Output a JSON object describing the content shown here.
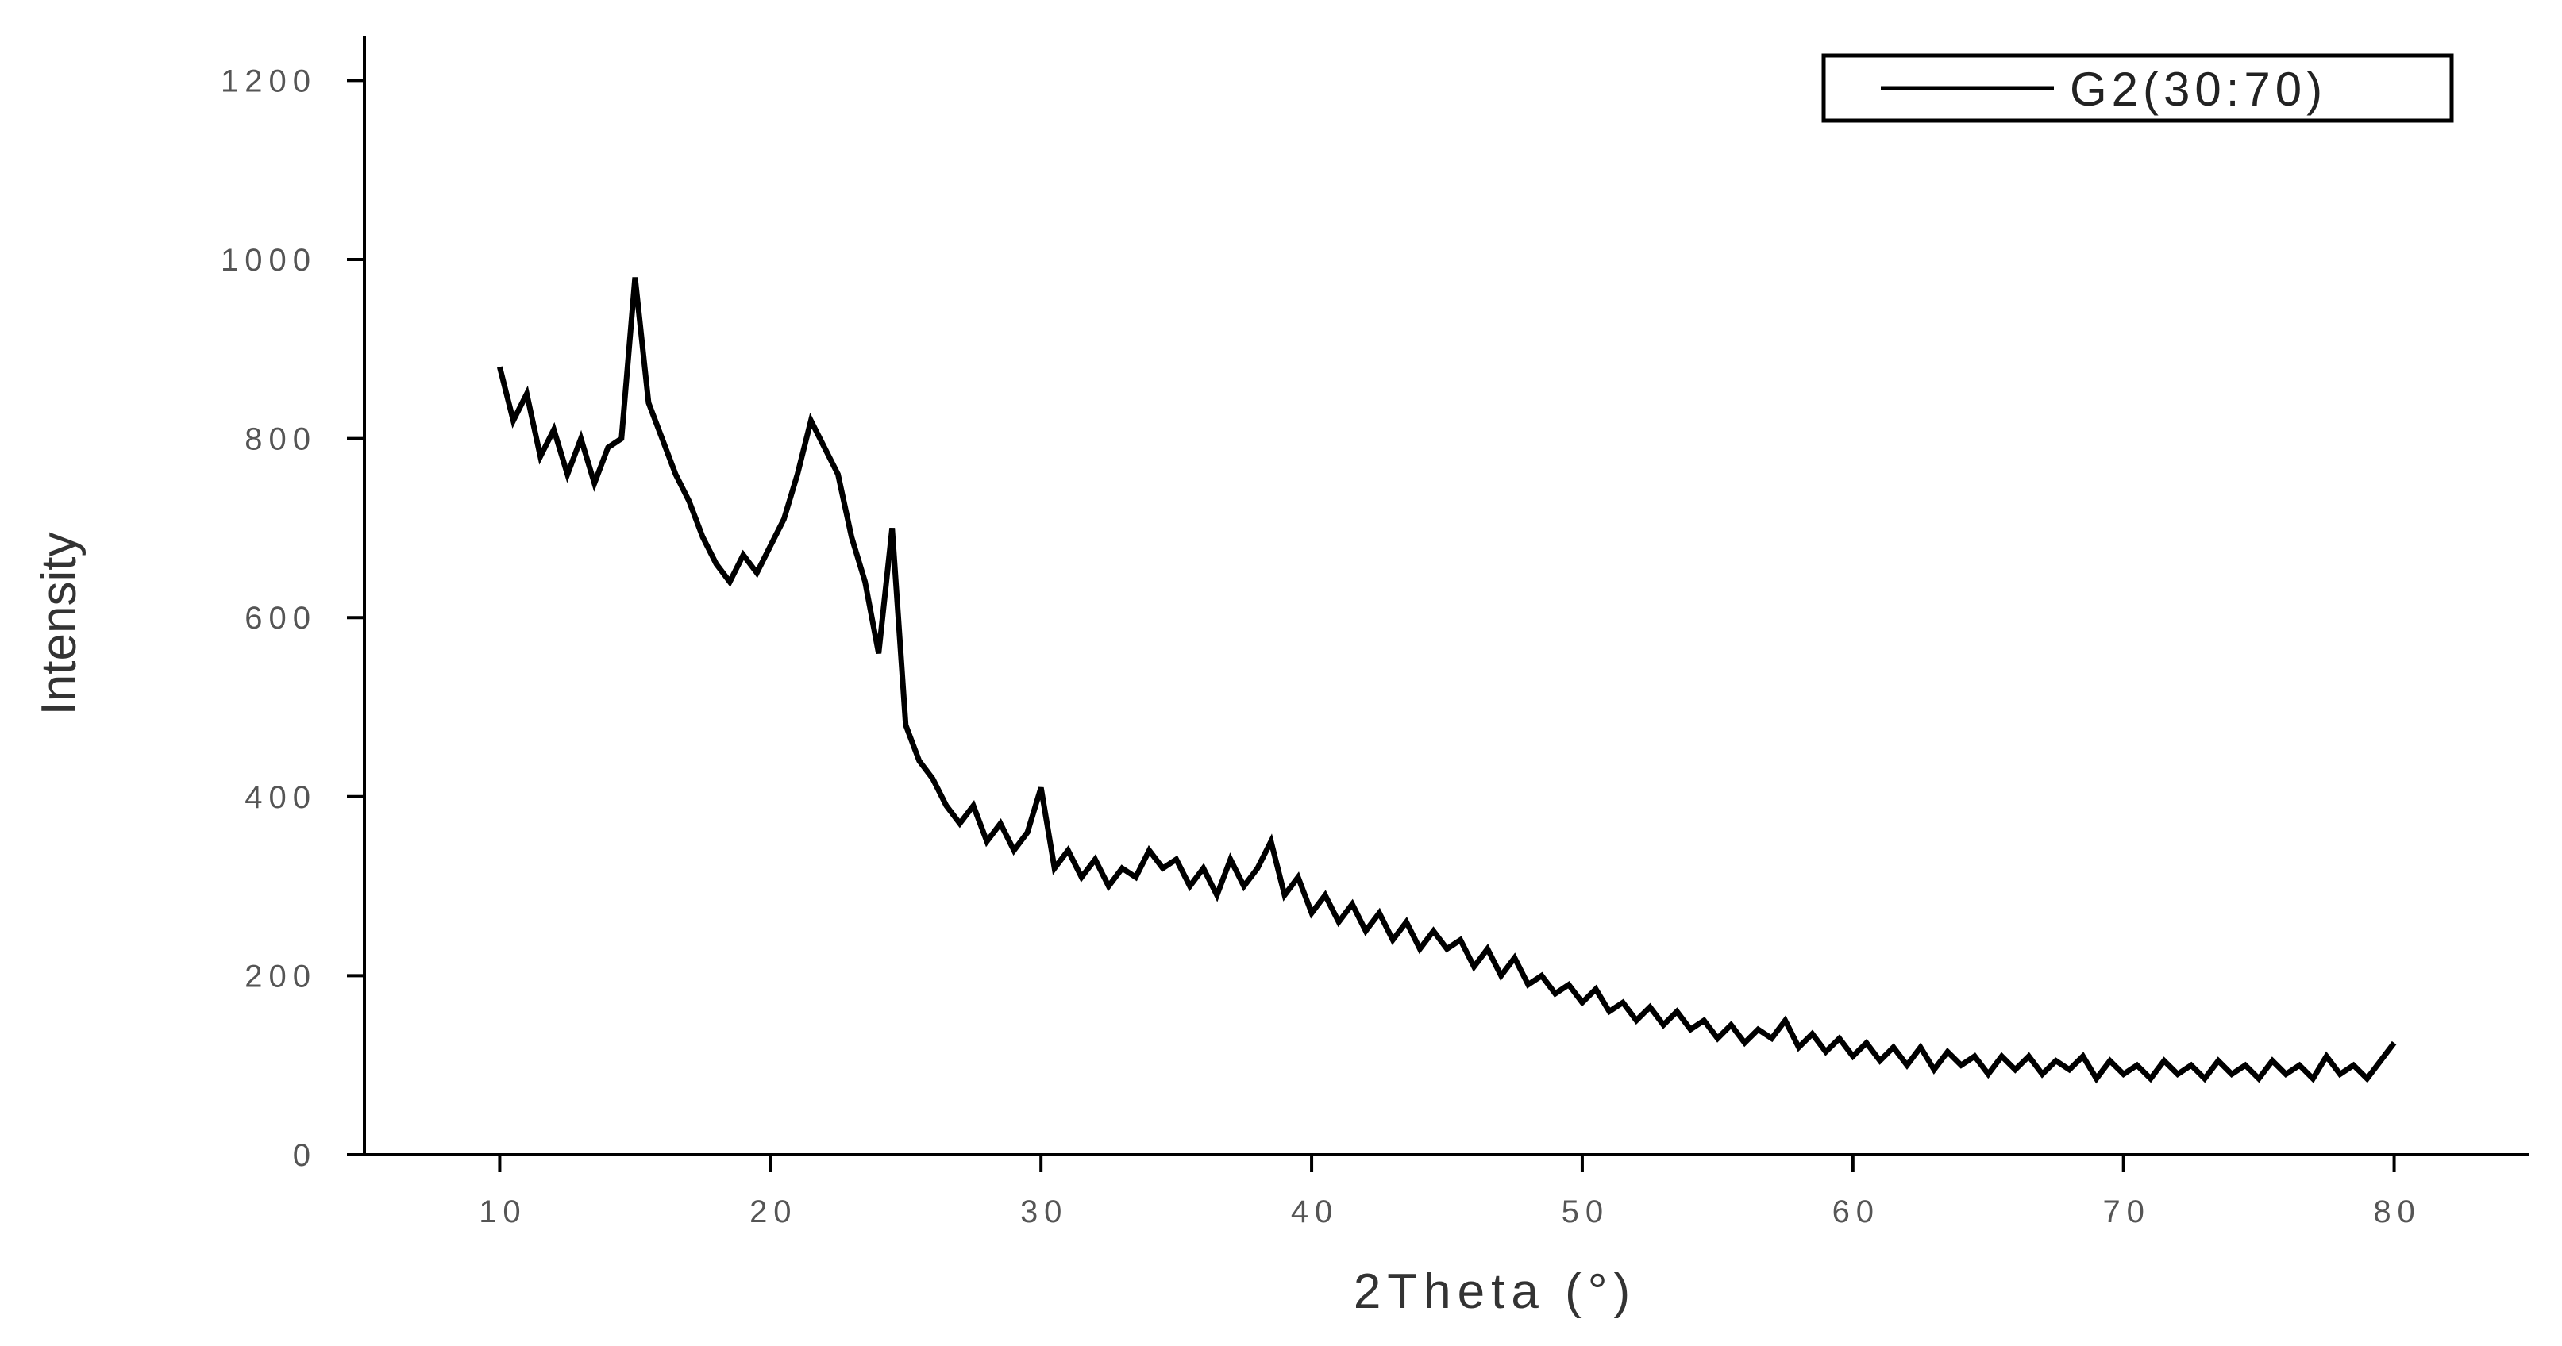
{
  "chart_data": {
    "type": "line",
    "x_label": "2Theta (°)",
    "y_label": "Intensity",
    "xlim": [
      5,
      85
    ],
    "ylim": [
      0,
      1250
    ],
    "xticks": [
      10,
      20,
      30,
      40,
      50,
      60,
      70,
      80
    ],
    "yticks": [
      0,
      200,
      400,
      600,
      800,
      1000,
      1200
    ],
    "legend": "top-right",
    "x": [
      10,
      10.5,
      11,
      11.5,
      12,
      12.5,
      13,
      13.5,
      14,
      14.5,
      15,
      15.5,
      16,
      16.5,
      17,
      17.5,
      18,
      18.5,
      19,
      19.5,
      20,
      20.5,
      21,
      21.5,
      22,
      22.5,
      23,
      23.5,
      24,
      24.5,
      25,
      25.5,
      26,
      26.5,
      27,
      27.5,
      28,
      28.5,
      29,
      29.5,
      30,
      30.5,
      31,
      31.5,
      32,
      32.5,
      33,
      33.5,
      34,
      34.5,
      35,
      35.5,
      36,
      36.5,
      37,
      37.5,
      38,
      38.5,
      39,
      39.5,
      40,
      40.5,
      41,
      41.5,
      42,
      42.5,
      43,
      43.5,
      44,
      44.5,
      45,
      45.5,
      46,
      46.5,
      47,
      47.5,
      48,
      48.5,
      49,
      49.5,
      50,
      50.5,
      51,
      51.5,
      52,
      52.5,
      53,
      53.5,
      54,
      54.5,
      55,
      55.5,
      56,
      56.5,
      57,
      57.5,
      58,
      58.5,
      59,
      59.5,
      60,
      60.5,
      61,
      61.5,
      62,
      62.5,
      63,
      63.5,
      64,
      64.5,
      65,
      65.5,
      66,
      66.5,
      67,
      67.5,
      68,
      68.5,
      69,
      69.5,
      70,
      70.5,
      71,
      71.5,
      72,
      72.5,
      73,
      73.5,
      74,
      74.5,
      75,
      75.5,
      76,
      76.5,
      77,
      77.5,
      78,
      78.5,
      79,
      79.5,
      80
    ],
    "series": [
      {
        "name": "G2(30:70)",
        "color": "#000000",
        "values": [
          880,
          820,
          850,
          780,
          810,
          760,
          800,
          750,
          790,
          800,
          980,
          840,
          800,
          760,
          730,
          690,
          660,
          640,
          670,
          650,
          680,
          710,
          760,
          820,
          790,
          760,
          690,
          640,
          560,
          700,
          480,
          440,
          420,
          390,
          370,
          390,
          350,
          370,
          340,
          360,
          410,
          320,
          340,
          310,
          330,
          300,
          320,
          310,
          340,
          320,
          330,
          300,
          320,
          290,
          330,
          300,
          320,
          350,
          290,
          310,
          270,
          290,
          260,
          280,
          250,
          270,
          240,
          260,
          230,
          250,
          230,
          240,
          210,
          230,
          200,
          220,
          190,
          200,
          180,
          190,
          170,
          185,
          160,
          170,
          150,
          165,
          145,
          160,
          140,
          150,
          130,
          145,
          125,
          140,
          130,
          150,
          120,
          135,
          115,
          130,
          110,
          125,
          105,
          120,
          100,
          120,
          95,
          115,
          100,
          110,
          90,
          110,
          95,
          110,
          90,
          105,
          95,
          110,
          85,
          105,
          90,
          100,
          85,
          105,
          90,
          100,
          85,
          105,
          90,
          100,
          85,
          105,
          90,
          100,
          85,
          110,
          90,
          100,
          85,
          105,
          125
        ]
      }
    ]
  }
}
